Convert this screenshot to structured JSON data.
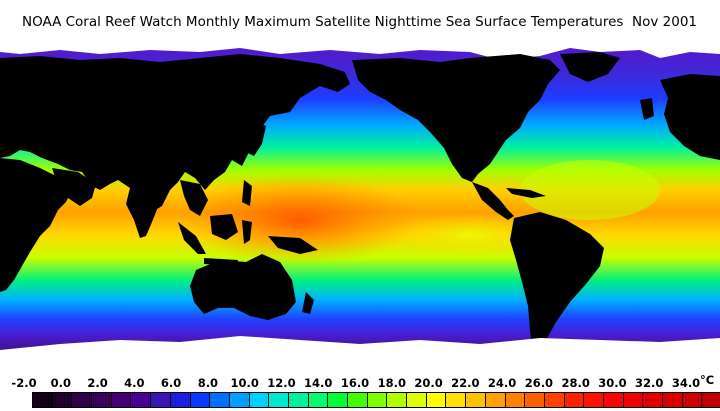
{
  "title": {
    "text": "NOAA Coral Reef Watch Monthly Maximum Satellite Nighttime Sea Surface Temperatures",
    "date": "Nov 2001"
  },
  "legend": {
    "unit": "°C",
    "tick_labels": [
      "-2.0",
      "0.0",
      "2.0",
      "4.0",
      "6.0",
      "8.0",
      "10.0",
      "12.0",
      "14.0",
      "16.0",
      "18.0",
      "20.0",
      "22.0",
      "24.0",
      "26.0",
      "28.0",
      "30.0",
      "32.0",
      "34.0"
    ],
    "swatch_colors": [
      "#120018",
      "#22002e",
      "#300046",
      "#3a005c",
      "#420074",
      "#4a0090",
      "#3c14b4",
      "#1e1ee0",
      "#0a3cff",
      "#0070ff",
      "#00a0ff",
      "#00d0ff",
      "#00e8d0",
      "#00f0a0",
      "#00ff70",
      "#00ff30",
      "#40ff00",
      "#80ff00",
      "#b0ff00",
      "#e0ff00",
      "#ffff00",
      "#ffe000",
      "#ffc000",
      "#ffa000",
      "#ff8000",
      "#ff6000",
      "#ff4000",
      "#ff2000",
      "#ff1000",
      "#ff0000",
      "#f00000",
      "#e00000",
      "#d80000",
      "#cc0000",
      "#c00000"
    ]
  },
  "map": {
    "land_color": "#000000",
    "ice_color": "#ffffff"
  }
}
